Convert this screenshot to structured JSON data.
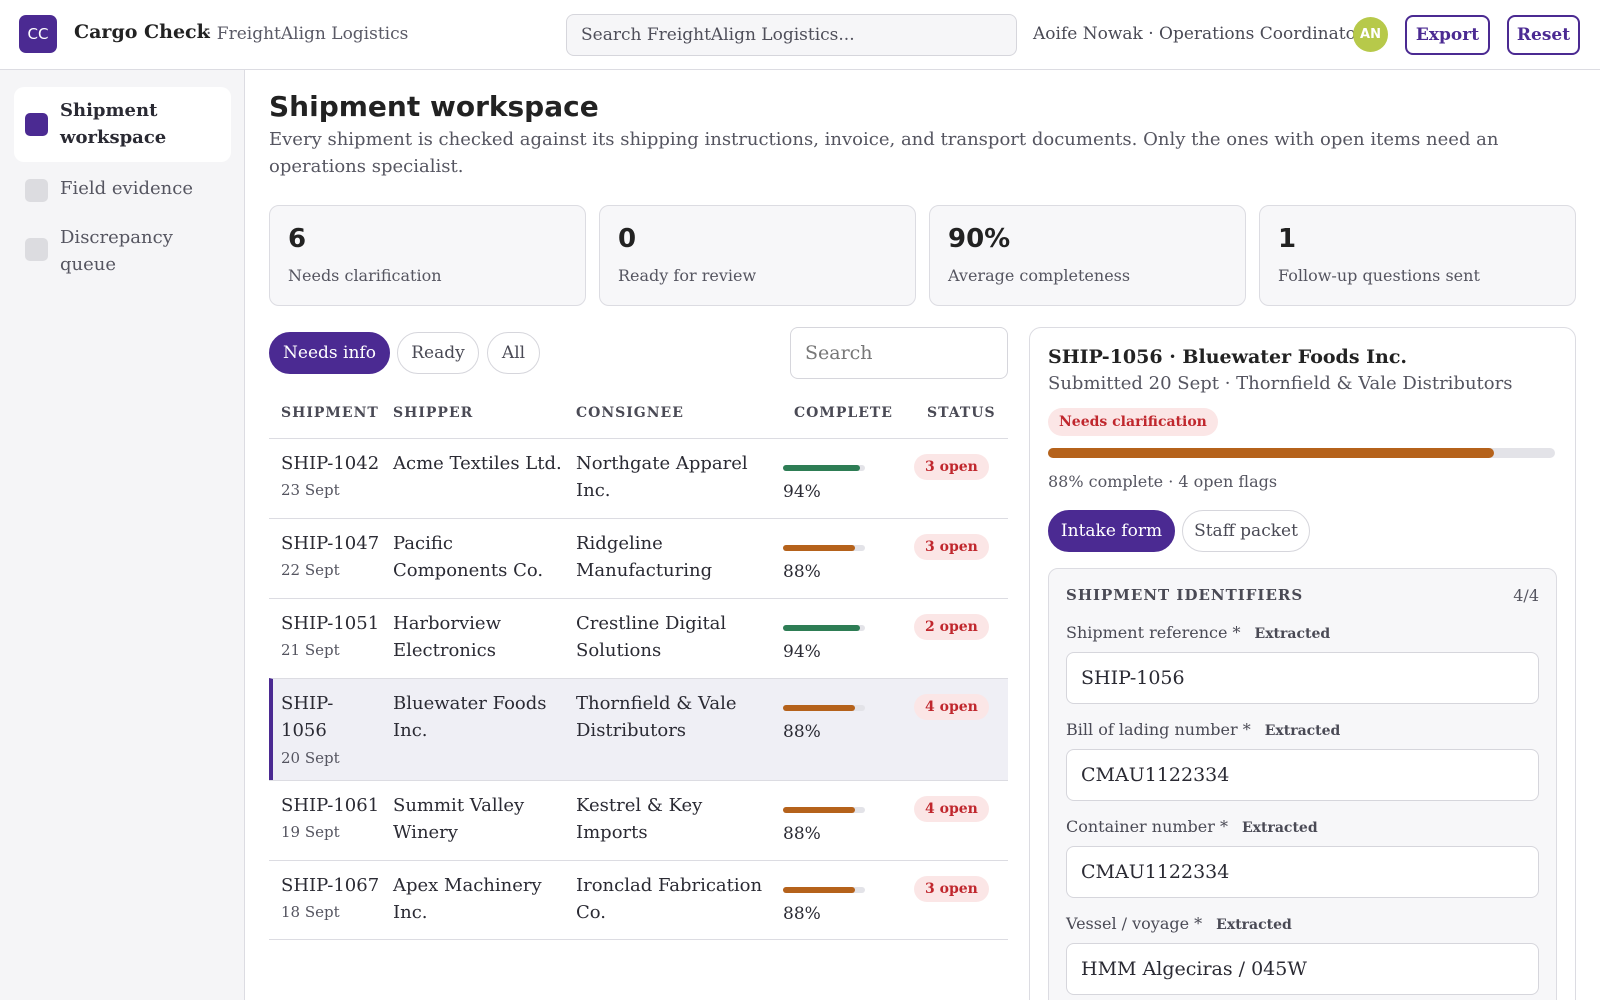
{
  "app": {
    "logo": "CC",
    "name": "Cargo Check",
    "org": "· FreightAlign Logistics"
  },
  "header": {
    "search_placeholder": "Search FreightAlign Logistics...",
    "user": "Aoife Nowak · Operations Coordinator",
    "avatar": "AN",
    "export_label": "Export",
    "reset_label": "Reset"
  },
  "sidebar": {
    "items": [
      {
        "label": "Shipment workspace",
        "active": true
      },
      {
        "label": "Field evidence",
        "active": false
      },
      {
        "label": "Discrepancy queue",
        "active": false
      }
    ]
  },
  "main": {
    "title": "Shipment workspace",
    "intro": "Every shipment is checked against its shipping instructions, invoice, and transport documents. Only the ones with open items need an operations specialist."
  },
  "stats": [
    {
      "value": "6",
      "label": "Needs clarification"
    },
    {
      "value": "0",
      "label": "Ready for review"
    },
    {
      "value": "90%",
      "label": "Average completeness"
    },
    {
      "value": "1",
      "label": "Follow-up questions sent"
    }
  ],
  "filters": {
    "needs_info": "Needs info",
    "ready": "Ready",
    "all": "All",
    "search_placeholder": "Search"
  },
  "table": {
    "headers": {
      "shipment": "SHIPMENT",
      "shipper": "SHIPPER",
      "consignee": "CONSIGNEE",
      "complete": "COMPLETE",
      "status": "STATUS"
    },
    "rows": [
      {
        "id": "SHIP-1042",
        "date": "23 Sept",
        "shipper": "Acme Textiles Ltd.",
        "consignee": "Northgate Apparel Inc.",
        "complete": "94%",
        "fraction": 0.94,
        "color": "#2e7d55",
        "status": "3 open"
      },
      {
        "id": "SHIP-1047",
        "date": "22 Sept",
        "shipper": "Pacific Components Co.",
        "consignee": "Ridgeline Manufacturing",
        "complete": "88%",
        "fraction": 0.88,
        "color": "#b5621b",
        "status": "3 open"
      },
      {
        "id": "SHIP-1051",
        "date": "21 Sept",
        "shipper": "Harborview Electronics",
        "consignee": "Crestline Digital Solutions",
        "complete": "94%",
        "fraction": 0.94,
        "color": "#2e7d55",
        "status": "2 open"
      },
      {
        "id": "SHIP-1056",
        "date": "20 Sept",
        "shipper": "Bluewater Foods Inc.",
        "consignee": "Thornfield & Vale Distributors",
        "complete": "88%",
        "fraction": 0.88,
        "color": "#b5621b",
        "status": "4 open",
        "selected": true
      },
      {
        "id": "SHIP-1061",
        "date": "19 Sept",
        "shipper": "Summit Valley Winery",
        "consignee": "Kestrel & Key Imports",
        "complete": "88%",
        "fraction": 0.88,
        "color": "#b5621b",
        "status": "4 open"
      },
      {
        "id": "SHIP-1067",
        "date": "18 Sept",
        "shipper": "Apex Machinery Inc.",
        "consignee": "Ironclad Fabrication Co.",
        "complete": "88%",
        "fraction": 0.88,
        "color": "#b5621b",
        "status": "3 open"
      }
    ]
  },
  "detail": {
    "title": "SHIP-1056 · Bluewater Foods Inc.",
    "subtitle": "Submitted 20 Sept · Thornfield & Vale Distributors",
    "badge": "Needs clarification",
    "progress_fraction": 0.88,
    "progress_text": "88% complete · 4 open flags",
    "tabs": {
      "intake": "Intake form",
      "staff": "Staff packet"
    },
    "section": {
      "title": "SHIPMENT IDENTIFIERS",
      "count": "4/4",
      "fields": [
        {
          "label": "Shipment reference *",
          "tag": "Extracted",
          "value": "SHIP-1056"
        },
        {
          "label": "Bill of lading number *",
          "tag": "Extracted",
          "value": "CMAU1122334"
        },
        {
          "label": "Container number *",
          "tag": "Extracted",
          "value": "CMAU1122334"
        },
        {
          "label": "Vessel / voyage *",
          "tag": "Extracted",
          "value": "HMM Algeciras / 045W"
        }
      ]
    }
  }
}
